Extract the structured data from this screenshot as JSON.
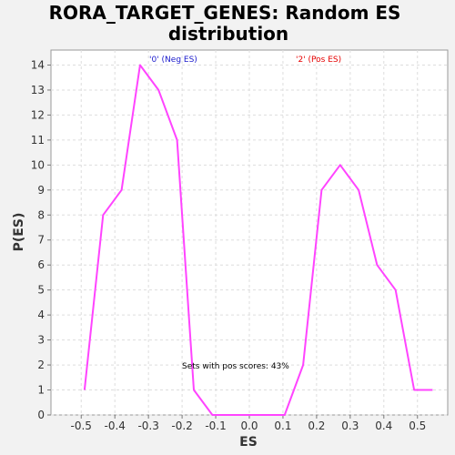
{
  "chart_data": {
    "type": "line",
    "title_lines": [
      "RORA_TARGET_GENES: Random ES",
      "distribution"
    ],
    "xlabel": "ES",
    "ylabel": "P(ES)",
    "xlim": [
      -0.59,
      0.59
    ],
    "ylim": [
      0,
      14.6
    ],
    "x_ticks": [
      -0.5,
      -0.4,
      -0.3,
      -0.2,
      -0.1,
      0.0,
      0.1,
      0.2,
      0.3,
      0.4,
      0.5
    ],
    "x_tick_labels": [
      "-0.5",
      "-0.4",
      "-0.3",
      "-0.2",
      "-0.1",
      "0.0",
      "0.1",
      "0.2",
      "0.3",
      "0.4",
      "0.5"
    ],
    "y_ticks": [
      0,
      1,
      2,
      3,
      4,
      5,
      6,
      7,
      8,
      9,
      10,
      11,
      12,
      13,
      14
    ],
    "y_tick_labels": [
      "0",
      "1",
      "2",
      "3",
      "4",
      "5",
      "6",
      "7",
      "8",
      "9",
      "10",
      "11",
      "12",
      "13",
      "14"
    ],
    "grid": true,
    "line_color": "#ff44ff",
    "x": [
      -0.49,
      -0.435,
      -0.38,
      -0.325,
      -0.27,
      -0.215,
      -0.165,
      -0.11,
      0.105,
      0.16,
      0.215,
      0.27,
      0.325,
      0.38,
      0.435,
      0.49,
      0.545
    ],
    "y": [
      1,
      8,
      9,
      14,
      13,
      11,
      1,
      0,
      0,
      2,
      9,
      10,
      9,
      6,
      5,
      1,
      1
    ],
    "annotations": {
      "neg_label": "'0' (Neg ES)",
      "neg_color": "#1a1acc",
      "pos_label": "'2' (Pos ES)",
      "pos_color": "#e60000",
      "pos_scores_note": "Sets with pos scores: 43%"
    }
  }
}
